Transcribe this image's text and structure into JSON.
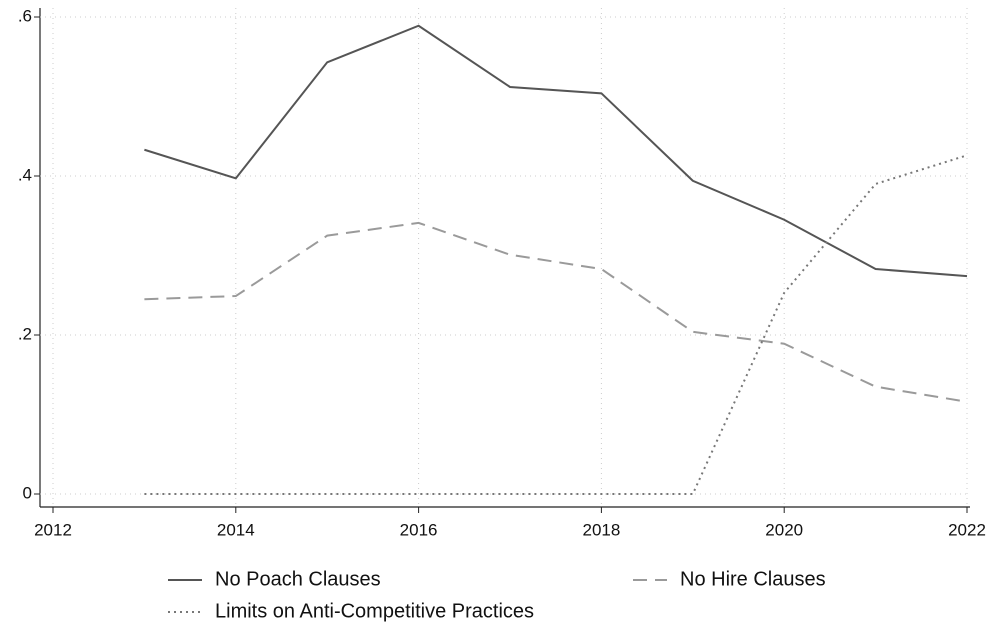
{
  "chart_data": {
    "type": "line",
    "x": [
      2013,
      2014,
      2015,
      2016,
      2017,
      2018,
      2019,
      2020,
      2021,
      2022
    ],
    "series": [
      {
        "name": "No Poach Clauses",
        "color": "#555555",
        "dash": "solid",
        "values": [
          0.433,
          0.397,
          0.543,
          0.589,
          0.512,
          0.504,
          0.394,
          0.345,
          0.283,
          0.274
        ]
      },
      {
        "name": "No Hire Clauses",
        "color": "#9a9a9a",
        "dash": "dashed",
        "values": [
          0.245,
          0.249,
          0.325,
          0.341,
          0.301,
          0.283,
          0.204,
          0.189,
          0.135,
          0.116
        ]
      },
      {
        "name": "Limits on Anti-Competitive Practices",
        "color": "#777777",
        "dash": "dotted",
        "values": [
          0,
          0,
          0,
          0,
          0,
          0,
          0,
          0.253,
          0.39,
          0.426
        ]
      }
    ],
    "xlim": [
      2012,
      2022
    ],
    "xticks": [
      2012,
      2014,
      2016,
      2018,
      2020,
      2022
    ],
    "ylim": [
      0,
      0.6
    ],
    "yticks": [
      0,
      {
        "value": 0.2,
        "label": ".2"
      },
      {
        "value": 0.4,
        "label": ".4"
      },
      {
        "value": 0.6,
        "label": ".6"
      }
    ],
    "grid": true,
    "legend": "bottom"
  }
}
